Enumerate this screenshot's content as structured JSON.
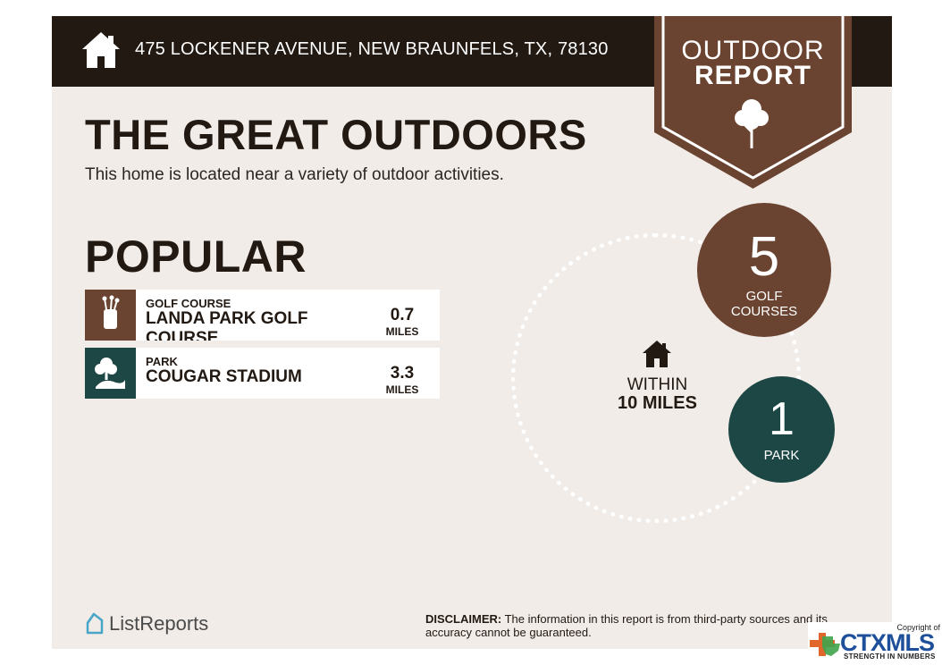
{
  "header": {
    "address": "475 LOCKENER AVENUE, NEW BRAUNFELS, TX, 78130"
  },
  "badge": {
    "line1": "OUTDOOR",
    "line2": "REPORT",
    "icon": "tree-icon"
  },
  "main": {
    "title": "THE GREAT OUTDOORS",
    "subtitle": "This home is located near a variety of outdoor activities."
  },
  "popular": {
    "heading": "POPULAR",
    "items": [
      {
        "category": "GOLF COURSE",
        "name": "LANDA PARK GOLF COURSE",
        "distance": "0.7",
        "unit": "MILES",
        "icon": "golf-bag-icon",
        "color": "#6a4331"
      },
      {
        "category": "PARK",
        "name": "COUGAR STADIUM",
        "distance": "3.3",
        "unit": "MILES",
        "icon": "park-tree-icon",
        "color": "#1d4745"
      }
    ]
  },
  "summary": {
    "within_line1": "WITHIN",
    "within_line2": "10 MILES",
    "golf": {
      "count": "5",
      "label_line1": "GOLF",
      "label_line2": "COURSES",
      "color": "#6a4331"
    },
    "park": {
      "count": "1",
      "label": "PARK",
      "color": "#1d4745"
    }
  },
  "footer": {
    "logo_text": "ListReports",
    "disclaimer_label": "DISCLAIMER:",
    "disclaimer_text": " The information in this report is from third-party sources and its accuracy cannot be guaranteed."
  },
  "watermark": {
    "copyright": "Copyright of",
    "brand_ctx": "CTX",
    "brand_mls": "MLS",
    "tagline": "STRENGTH IN NUMBERS"
  }
}
